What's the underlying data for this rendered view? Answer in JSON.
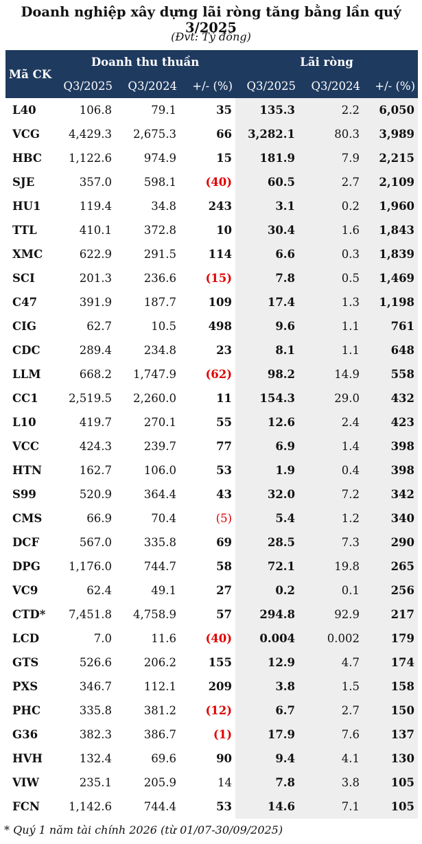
{
  "title": "Doanh nghiệp xây dựng lãi ròng tăng bằng lần quý 3/2025",
  "unit": "(Đvt: Tỷ đồng)",
  "table": {
    "header": {
      "code": "Mã CK",
      "revenue_group": "Doanh thu thuần",
      "profit_group": "Lãi ròng",
      "sub": [
        "Q3/2025",
        "Q3/2024",
        "+/- (%)",
        "Q3/2025",
        "Q3/2024",
        "+/- (%)"
      ]
    },
    "rows": [
      {
        "code": "L40",
        "rev25": "106.8",
        "rev24": "79.1",
        "rev_chg": "35",
        "rev_neg": false,
        "rev_chg_bold": true,
        "np25": "135.3",
        "np24": "2.2",
        "np_chg": "6,050"
      },
      {
        "code": "VCG",
        "rev25": "4,429.3",
        "rev24": "2,675.3",
        "rev_chg": "66",
        "rev_neg": false,
        "rev_chg_bold": true,
        "np25": "3,282.1",
        "np24": "80.3",
        "np_chg": "3,989"
      },
      {
        "code": "HBC",
        "rev25": "1,122.6",
        "rev24": "974.9",
        "rev_chg": "15",
        "rev_neg": false,
        "rev_chg_bold": true,
        "np25": "181.9",
        "np24": "7.9",
        "np_chg": "2,215"
      },
      {
        "code": "SJE",
        "rev25": "357.0",
        "rev24": "598.1",
        "rev_chg": "(40)",
        "rev_neg": true,
        "rev_chg_bold": true,
        "np25": "60.5",
        "np24": "2.7",
        "np_chg": "2,109"
      },
      {
        "code": "HU1",
        "rev25": "119.4",
        "rev24": "34.8",
        "rev_chg": "243",
        "rev_neg": false,
        "rev_chg_bold": true,
        "np25": "3.1",
        "np24": "0.2",
        "np_chg": "1,960"
      },
      {
        "code": "TTL",
        "rev25": "410.1",
        "rev24": "372.8",
        "rev_chg": "10",
        "rev_neg": false,
        "rev_chg_bold": true,
        "np25": "30.4",
        "np24": "1.6",
        "np_chg": "1,843"
      },
      {
        "code": "XMC",
        "rev25": "622.9",
        "rev24": "291.5",
        "rev_chg": "114",
        "rev_neg": false,
        "rev_chg_bold": true,
        "np25": "6.6",
        "np24": "0.3",
        "np_chg": "1,839"
      },
      {
        "code": "SCI",
        "rev25": "201.3",
        "rev24": "236.6",
        "rev_chg": "(15)",
        "rev_neg": true,
        "rev_chg_bold": true,
        "np25": "7.8",
        "np24": "0.5",
        "np_chg": "1,469"
      },
      {
        "code": "C47",
        "rev25": "391.9",
        "rev24": "187.7",
        "rev_chg": "109",
        "rev_neg": false,
        "rev_chg_bold": true,
        "np25": "17.4",
        "np24": "1.3",
        "np_chg": "1,198"
      },
      {
        "code": "CIG",
        "rev25": "62.7",
        "rev24": "10.5",
        "rev_chg": "498",
        "rev_neg": false,
        "rev_chg_bold": true,
        "np25": "9.6",
        "np24": "1.1",
        "np_chg": "761"
      },
      {
        "code": "CDC",
        "rev25": "289.4",
        "rev24": "234.8",
        "rev_chg": "23",
        "rev_neg": false,
        "rev_chg_bold": true,
        "np25": "8.1",
        "np24": "1.1",
        "np_chg": "648"
      },
      {
        "code": "LLM",
        "rev25": "668.2",
        "rev24": "1,747.9",
        "rev_chg": "(62)",
        "rev_neg": true,
        "rev_chg_bold": true,
        "np25": "98.2",
        "np24": "14.9",
        "np_chg": "558"
      },
      {
        "code": "CC1",
        "rev25": "2,519.5",
        "rev24": "2,260.0",
        "rev_chg": "11",
        "rev_neg": false,
        "rev_chg_bold": true,
        "np25": "154.3",
        "np24": "29.0",
        "np_chg": "432"
      },
      {
        "code": "L10",
        "rev25": "419.7",
        "rev24": "270.1",
        "rev_chg": "55",
        "rev_neg": false,
        "rev_chg_bold": true,
        "np25": "12.6",
        "np24": "2.4",
        "np_chg": "423"
      },
      {
        "code": "VCC",
        "rev25": "424.3",
        "rev24": "239.7",
        "rev_chg": "77",
        "rev_neg": false,
        "rev_chg_bold": true,
        "np25": "6.9",
        "np24": "1.4",
        "np_chg": "398"
      },
      {
        "code": "HTN",
        "rev25": "162.7",
        "rev24": "106.0",
        "rev_chg": "53",
        "rev_neg": false,
        "rev_chg_bold": true,
        "np25": "1.9",
        "np24": "0.4",
        "np_chg": "398"
      },
      {
        "code": "S99",
        "rev25": "520.9",
        "rev24": "364.4",
        "rev_chg": "43",
        "rev_neg": false,
        "rev_chg_bold": true,
        "np25": "32.0",
        "np24": "7.2",
        "np_chg": "342"
      },
      {
        "code": "CMS",
        "rev25": "66.9",
        "rev24": "70.4",
        "rev_chg": "(5)",
        "rev_neg": true,
        "rev_chg_bold": false,
        "np25": "5.4",
        "np24": "1.2",
        "np_chg": "340"
      },
      {
        "code": "DCF",
        "rev25": "567.0",
        "rev24": "335.8",
        "rev_chg": "69",
        "rev_neg": false,
        "rev_chg_bold": true,
        "np25": "28.5",
        "np24": "7.3",
        "np_chg": "290"
      },
      {
        "code": "DPG",
        "rev25": "1,176.0",
        "rev24": "744.7",
        "rev_chg": "58",
        "rev_neg": false,
        "rev_chg_bold": true,
        "np25": "72.1",
        "np24": "19.8",
        "np_chg": "265"
      },
      {
        "code": "VC9",
        "rev25": "62.4",
        "rev24": "49.1",
        "rev_chg": "27",
        "rev_neg": false,
        "rev_chg_bold": true,
        "np25": "0.2",
        "np24": "0.1",
        "np_chg": "256"
      },
      {
        "code": "CTD*",
        "rev25": "7,451.8",
        "rev24": "4,758.9",
        "rev_chg": "57",
        "rev_neg": false,
        "rev_chg_bold": true,
        "np25": "294.8",
        "np24": "92.9",
        "np_chg": "217"
      },
      {
        "code": "LCD",
        "rev25": "7.0",
        "rev24": "11.6",
        "rev_chg": "(40)",
        "rev_neg": true,
        "rev_chg_bold": true,
        "np25": "0.004",
        "np24": "0.002",
        "np_chg": "179"
      },
      {
        "code": "GTS",
        "rev25": "526.6",
        "rev24": "206.2",
        "rev_chg": "155",
        "rev_neg": false,
        "rev_chg_bold": true,
        "np25": "12.9",
        "np24": "4.7",
        "np_chg": "174"
      },
      {
        "code": "PXS",
        "rev25": "346.7",
        "rev24": "112.1",
        "rev_chg": "209",
        "rev_neg": false,
        "rev_chg_bold": true,
        "np25": "3.8",
        "np24": "1.5",
        "np_chg": "158"
      },
      {
        "code": "PHC",
        "rev25": "335.8",
        "rev24": "381.2",
        "rev_chg": "(12)",
        "rev_neg": true,
        "rev_chg_bold": true,
        "np25": "6.7",
        "np24": "2.7",
        "np_chg": "150"
      },
      {
        "code": "G36",
        "rev25": "382.3",
        "rev24": "386.7",
        "rev_chg": "(1)",
        "rev_neg": true,
        "rev_chg_bold": true,
        "np25": "17.9",
        "np24": "7.6",
        "np_chg": "137"
      },
      {
        "code": "HVH",
        "rev25": "132.4",
        "rev24": "69.6",
        "rev_chg": "90",
        "rev_neg": false,
        "rev_chg_bold": true,
        "np25": "9.4",
        "np24": "4.1",
        "np_chg": "130"
      },
      {
        "code": "VIW",
        "rev25": "235.1",
        "rev24": "205.9",
        "rev_chg": "14",
        "rev_neg": false,
        "rev_chg_bold": false,
        "np25": "7.8",
        "np24": "3.8",
        "np_chg": "105"
      },
      {
        "code": "FCN",
        "rev25": "1,142.6",
        "rev24": "744.4",
        "rev_chg": "53",
        "rev_neg": false,
        "rev_chg_bold": true,
        "np25": "14.6",
        "np24": "7.1",
        "np_chg": "105"
      }
    ]
  },
  "note": "* Quý 1 năm tài chính 2026 (từ 01/07-30/09/2025)",
  "colors": {
    "header_bg": "#1f3a5f",
    "negative": "#e00000",
    "shade": "#eeeeee"
  }
}
